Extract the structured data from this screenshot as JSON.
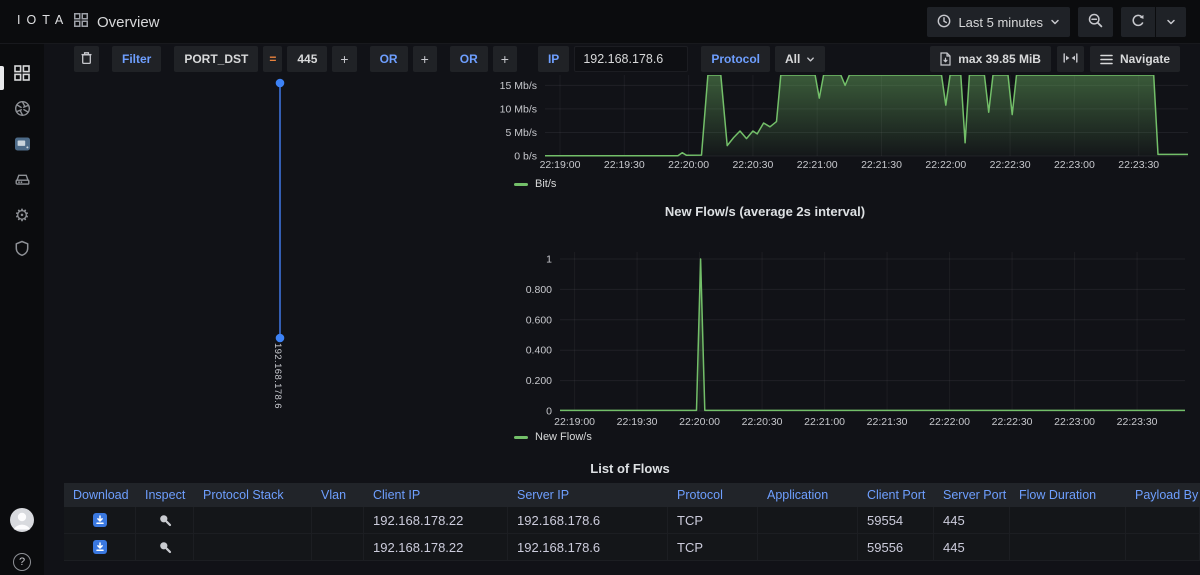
{
  "brand": "IOTA",
  "header": {
    "title": "Overview",
    "time_picker": "Last 5 minutes"
  },
  "filter_bar": {
    "filter": "Filter",
    "field": "PORT_DST",
    "equals": "=",
    "value": "445",
    "plus": "+",
    "or_1": "OR",
    "or_2": "OR",
    "ip": "IP",
    "ip_value": "192.168.178.6",
    "protocol": "Protocol",
    "protocol_value": "All",
    "max_size": "max 39.85 MiB",
    "navigate": "Navigate"
  },
  "node_graph": {
    "host": "192.168.178.6"
  },
  "chart_data": [
    {
      "type": "area",
      "legend": "Bit/s",
      "color": "#73BF69",
      "xlim": [
        0,
        300
      ],
      "ylim": [
        0,
        17.2
      ],
      "xticks": [
        {
          "t": 7,
          "label": "22:19:00"
        },
        {
          "t": 37,
          "label": "22:19:30"
        },
        {
          "t": 67,
          "label": "22:20:00"
        },
        {
          "t": 97,
          "label": "22:20:30"
        },
        {
          "t": 127,
          "label": "22:21:00"
        },
        {
          "t": 157,
          "label": "22:21:30"
        },
        {
          "t": 187,
          "label": "22:22:00"
        },
        {
          "t": 217,
          "label": "22:22:30"
        },
        {
          "t": 247,
          "label": "22:23:00"
        },
        {
          "t": 277,
          "label": "22:23:30"
        }
      ],
      "yticks": [
        {
          "v": 0,
          "label": "0 b/s"
        },
        {
          "v": 5,
          "label": "5 Mb/s"
        },
        {
          "v": 10,
          "label": "10 Mb/s"
        },
        {
          "v": 15,
          "label": "15 Mb/s"
        }
      ],
      "points": [
        [
          0,
          0.06
        ],
        [
          62,
          0.06
        ],
        [
          64,
          0.7
        ],
        [
          66,
          0.15
        ],
        [
          73,
          0.2
        ],
        [
          76,
          17.2
        ],
        [
          82,
          17.2
        ],
        [
          85,
          2.2
        ],
        [
          88,
          3.9
        ],
        [
          91,
          5.3
        ],
        [
          94,
          3.7
        ],
        [
          97,
          5.3
        ],
        [
          99,
          4.7
        ],
        [
          102,
          7.0
        ],
        [
          105,
          6.2
        ],
        [
          108,
          7.3
        ],
        [
          110,
          17.2
        ],
        [
          126,
          17.2
        ],
        [
          128,
          12.3
        ],
        [
          130,
          17.2
        ],
        [
          138,
          17.2
        ],
        [
          140,
          15.0
        ],
        [
          142,
          17.2
        ],
        [
          185,
          17.2
        ],
        [
          187,
          10.8
        ],
        [
          189,
          17.2
        ],
        [
          194,
          17.2
        ],
        [
          196,
          2.8
        ],
        [
          198,
          17.2
        ],
        [
          205,
          17.2
        ],
        [
          207,
          9.3
        ],
        [
          209,
          17.2
        ],
        [
          216,
          17.2
        ],
        [
          218,
          8.8
        ],
        [
          220,
          17.2
        ],
        [
          284,
          17.2
        ],
        [
          286,
          0.35
        ],
        [
          300,
          0.35
        ]
      ]
    },
    {
      "type": "area",
      "title": "New Flow/s (average 2s interval)",
      "legend": "New Flow/s",
      "color": "#73BF69",
      "xlim": [
        0,
        300
      ],
      "ylim": [
        0,
        1.046
      ],
      "xticks": [
        {
          "t": 7,
          "label": "22:19:00"
        },
        {
          "t": 37,
          "label": "22:19:30"
        },
        {
          "t": 67,
          "label": "22:20:00"
        },
        {
          "t": 97,
          "label": "22:20:30"
        },
        {
          "t": 127,
          "label": "22:21:00"
        },
        {
          "t": 157,
          "label": "22:21:30"
        },
        {
          "t": 187,
          "label": "22:22:00"
        },
        {
          "t": 217,
          "label": "22:22:30"
        },
        {
          "t": 247,
          "label": "22:23:00"
        },
        {
          "t": 277,
          "label": "22:23:30"
        }
      ],
      "yticks": [
        {
          "v": 0,
          "label": "0"
        },
        {
          "v": 0.2,
          "label": "0.200"
        },
        {
          "v": 0.4,
          "label": "0.400"
        },
        {
          "v": 0.6,
          "label": "0.600"
        },
        {
          "v": 0.8,
          "label": "0.800"
        },
        {
          "v": 1,
          "label": "1"
        }
      ],
      "points": [
        [
          0,
          0.004
        ],
        [
          65.5,
          0.004
        ],
        [
          67.5,
          1.0
        ],
        [
          69.5,
          0.004
        ],
        [
          300,
          0.004
        ]
      ]
    }
  ],
  "flows": {
    "title": "List of Flows",
    "columns": [
      "Download",
      "Inspect",
      "Protocol Stack",
      "Vlan",
      "Client IP",
      "Server IP",
      "Protocol",
      "Application",
      "Client Port",
      "Server Port",
      "Flow Duration",
      "Payload By"
    ],
    "rows": [
      {
        "client_ip": "192.168.178.22",
        "server_ip": "192.168.178.6",
        "protocol": "TCP",
        "client_port": "59554",
        "server_port": "445"
      },
      {
        "client_ip": "192.168.178.22",
        "server_ip": "192.168.178.6",
        "protocol": "TCP",
        "client_port": "59556",
        "server_port": "445"
      }
    ]
  },
  "icons": {
    "help_glyph": "?"
  },
  "colors": {
    "green": "#73BF69",
    "node_blue": "#3D82F6",
    "link": "#6E9FFF",
    "orange": "#E8823D"
  }
}
